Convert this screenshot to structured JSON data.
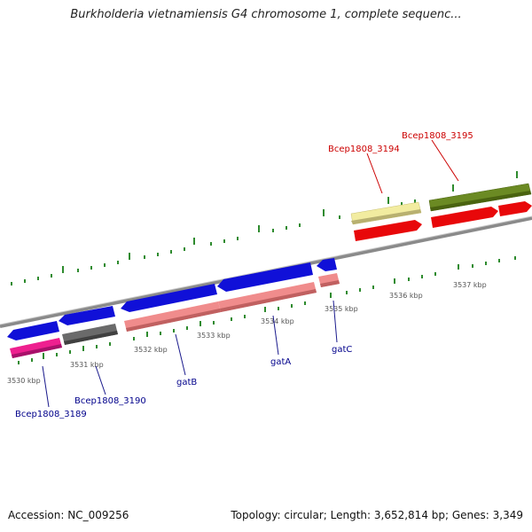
{
  "title": "Burkholderia vietnamiensis G4 chromosome 1, complete sequenc...",
  "accession": "Accession: NC_009256",
  "stats": "Topology: circular; Length: 3,652,814 bp; Genes: 3,349",
  "scale_labels": [
    "3530 kbp",
    "3531 kbp",
    "3532 kbp",
    "3533 kbp",
    "3534 kbp",
    "3535 kbp",
    "3536 kbp",
    "3537 kbp"
  ],
  "gene_labels": {
    "bcep3189": "Bcep1808_3189",
    "bcep3190": "Bcep1808_3190",
    "gatB": "gatB",
    "gatA": "gatA",
    "gatC": "gatC",
    "bcep3194": "Bcep1808_3194",
    "bcep3195": "Bcep1808_3195"
  },
  "colors": {
    "blue": "#1010d8",
    "salmon": "#f08c8c",
    "pink": "#ee1f8f",
    "gray": "#606060",
    "yellow": "#f2eca0",
    "olive": "#6b8a23",
    "red": "#e8080a",
    "tick_green": "#2e8b2e",
    "label_blue": "#00008b",
    "label_red": "#cc0000"
  }
}
